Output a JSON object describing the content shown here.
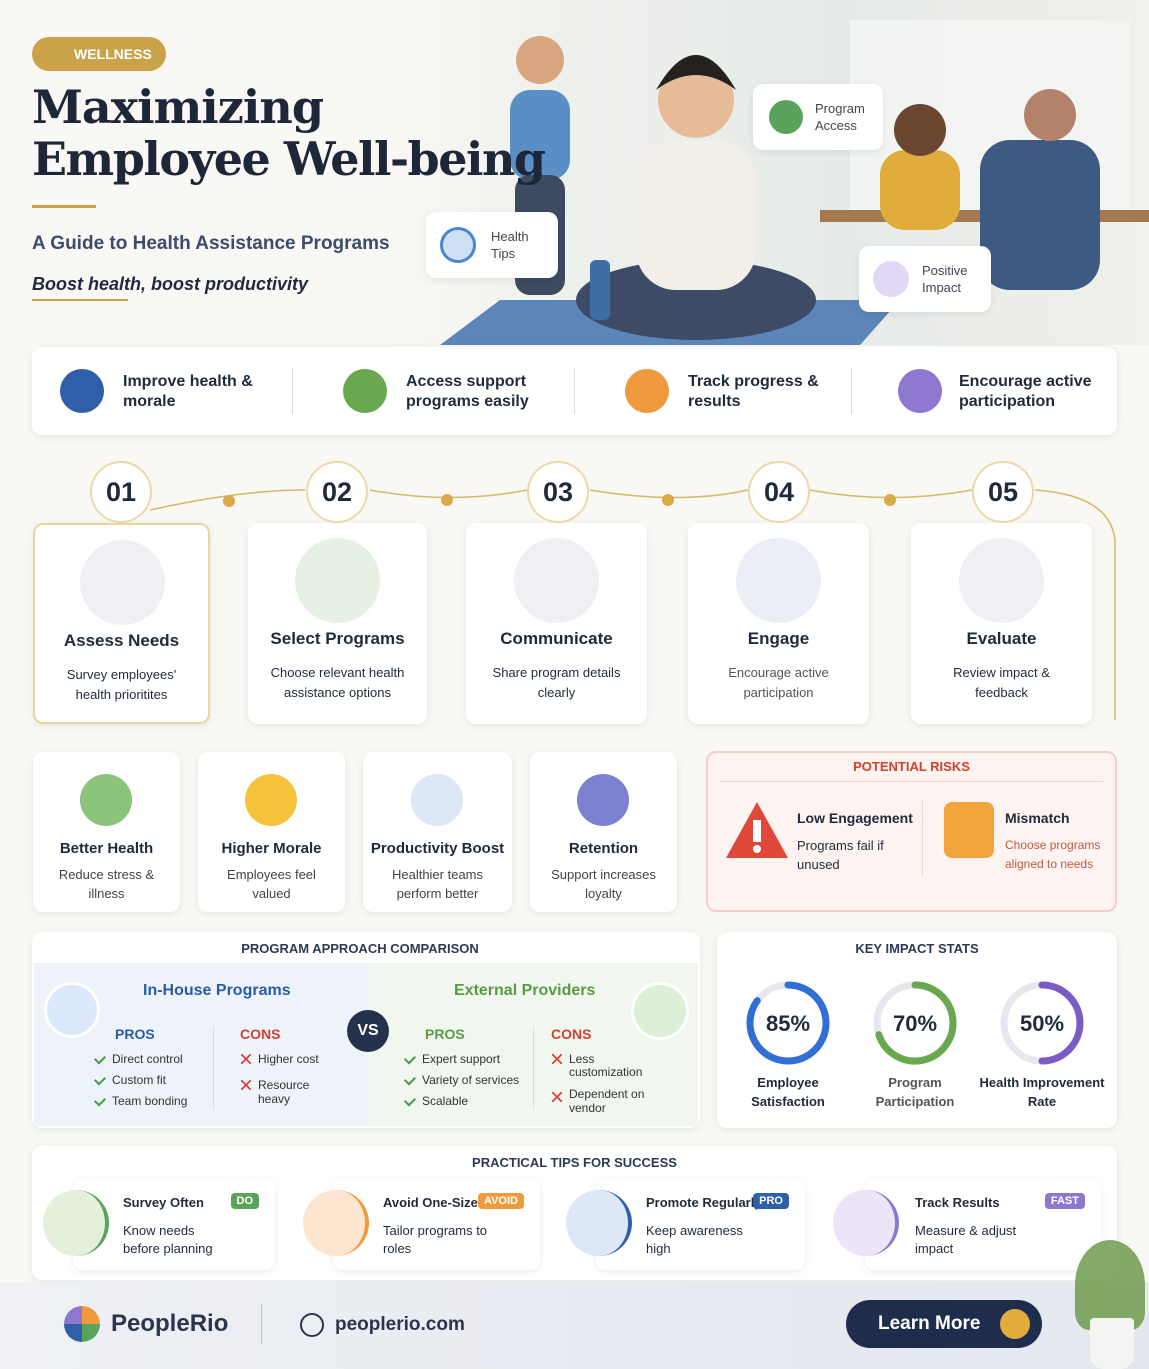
{
  "badge": "WELLNESS",
  "header": {
    "title_line1": "Maximizing",
    "title_line2": "Employee Well-being",
    "subtitle": "A Guide to Health Assistance Programs",
    "tagline": "Boost health, boost productivity"
  },
  "hero_cards": [
    "Program Access",
    "Health Tips",
    "Positive Impact"
  ],
  "goals": [
    "Improve health & morale",
    "Access support programs easily",
    "Track progress & results",
    "Encourage active participation"
  ],
  "steps": [
    {
      "number": "01",
      "title": "Assess Needs",
      "text": "Survey employees' health prioritites"
    },
    {
      "number": "02",
      "title": "Select Programs",
      "text": "Choose relevant health assistance options"
    },
    {
      "number": "03",
      "title": "Communicate",
      "text": "Share program details clearly"
    },
    {
      "number": "04",
      "title": "Engage",
      "text": "Encourage active participation"
    },
    {
      "number": "05",
      "title": "Evaluate",
      "text": "Review impact & feedback"
    }
  ],
  "benefits": [
    {
      "title": "Better Health",
      "text": "Reduce stress & illness"
    },
    {
      "title": "Higher Morale",
      "text": "Employees feel valued"
    },
    {
      "title": "Productivity Boost",
      "text": "Healthier teams perform better"
    },
    {
      "title": "Retention",
      "text": "Support increases loyalty"
    }
  ],
  "risks": {
    "title": "POTENTIAL RISKS",
    "items": [
      {
        "title": "Low Engagement",
        "text": "Programs fail if unused"
      },
      {
        "title": "Mismatch",
        "text": "Choose programs aligned to needs"
      }
    ]
  },
  "comparison": {
    "title": "PROGRAM APPROACH COMPARISON",
    "vs": "VS",
    "columns": [
      {
        "name": "In-House Programs",
        "pros_label": "PROS",
        "pros": [
          "Direct control",
          "Custom fit",
          "Team bonding"
        ],
        "cons_label": "CONS",
        "cons": [
          "Higher cost",
          "Resource heavy"
        ]
      },
      {
        "name": "External Providers",
        "pros_label": "PROS",
        "pros": [
          "Expert support",
          "Variety of services",
          "Scalable"
        ],
        "cons_label": "CONS",
        "cons": [
          "Less customization",
          "Dependent on vendor"
        ]
      }
    ]
  },
  "stats": {
    "title": "KEY IMPACT STATS",
    "items": [
      {
        "value": 85,
        "value_label": "85%",
        "name": "Employee Satisfaction"
      },
      {
        "value": 70,
        "value_label": "70%",
        "name": "Program Participation"
      },
      {
        "value": 50,
        "value_label": "50%",
        "name": "Health Improvement Rate"
      }
    ]
  },
  "tips": {
    "title": "PRACTICAL TIPS FOR SUCCESS",
    "items": [
      {
        "title": "Survey Often",
        "tag": "DO",
        "text": "Know needs before planning"
      },
      {
        "title": "Avoid One-Size",
        "tag": "AVOID",
        "text": "Tailor programs to roles"
      },
      {
        "title": "Promote Regularly",
        "tag": "PRO",
        "text": "Keep awareness high"
      },
      {
        "title": "Track Results",
        "tag": "FAST",
        "text": "Measure & adjust impact"
      }
    ]
  },
  "footer": {
    "brand": "PeopleRio",
    "website": "peoplerio.com",
    "button": "Learn More"
  }
}
